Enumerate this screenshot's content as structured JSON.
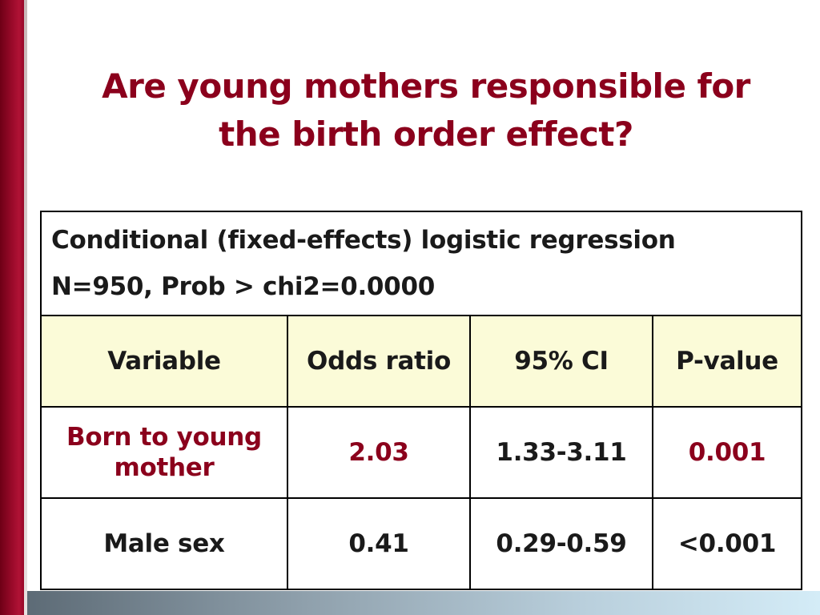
{
  "title": {
    "line1": "Are young mothers responsible for",
    "line2": "the birth order effect?"
  },
  "table": {
    "summary_line1": "Conditional (fixed-effects) logistic regression",
    "summary_line2": "N=950, Prob > chi2=0.0000",
    "headers": [
      "Variable",
      "Odds ratio",
      "95% CI",
      "P-value"
    ],
    "rows": [
      {
        "variable_line1": "Born to young",
        "variable_line2": "mother",
        "odds_ratio": "2.03",
        "ci": "1.33-3.11",
        "p_value": "0.001"
      },
      {
        "variable": "Male sex",
        "odds_ratio": "0.41",
        "ci": "0.29-0.59",
        "p_value": "<0.001"
      }
    ]
  },
  "colors": {
    "accent_red": "#8b001c",
    "header_bg": "#fbfbd8"
  }
}
